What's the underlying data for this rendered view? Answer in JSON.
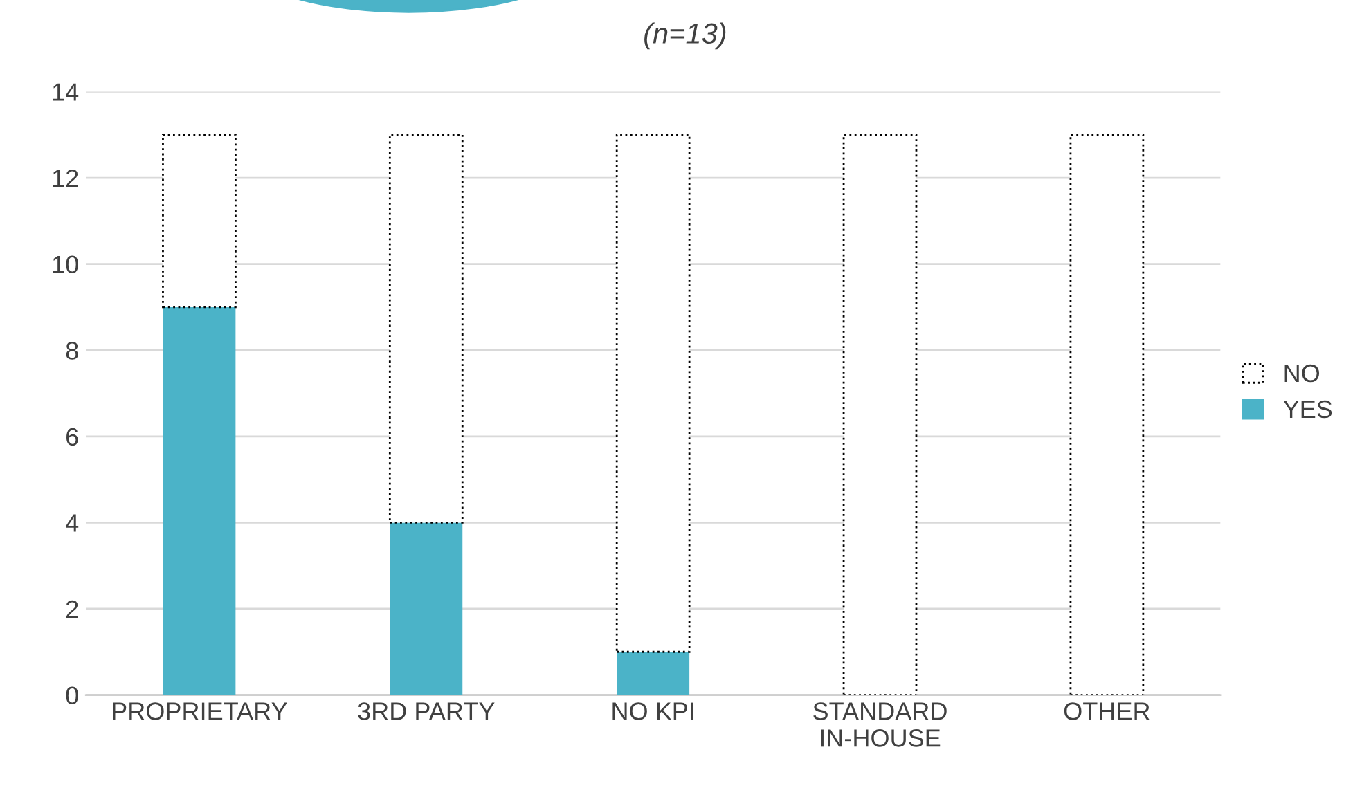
{
  "chart_data": {
    "type": "bar",
    "title": "(n=13)",
    "stacked": true,
    "categories": [
      "PROPRIETARY",
      "3RD PARTY",
      "NO KPI",
      "STANDARD IN-HOUSE",
      "OTHER"
    ],
    "series": [
      {
        "name": "YES",
        "color": "#4bb3c8",
        "values": [
          9,
          4,
          1,
          0,
          0
        ]
      },
      {
        "name": "NO",
        "color": "#ffffff",
        "values": [
          4,
          9,
          12,
          13,
          13
        ],
        "line_style": "dotted"
      }
    ],
    "ylim": [
      0,
      14
    ],
    "yticks": [
      0,
      2,
      4,
      6,
      8,
      10,
      12,
      14
    ],
    "grid": "y",
    "legend": "right"
  }
}
